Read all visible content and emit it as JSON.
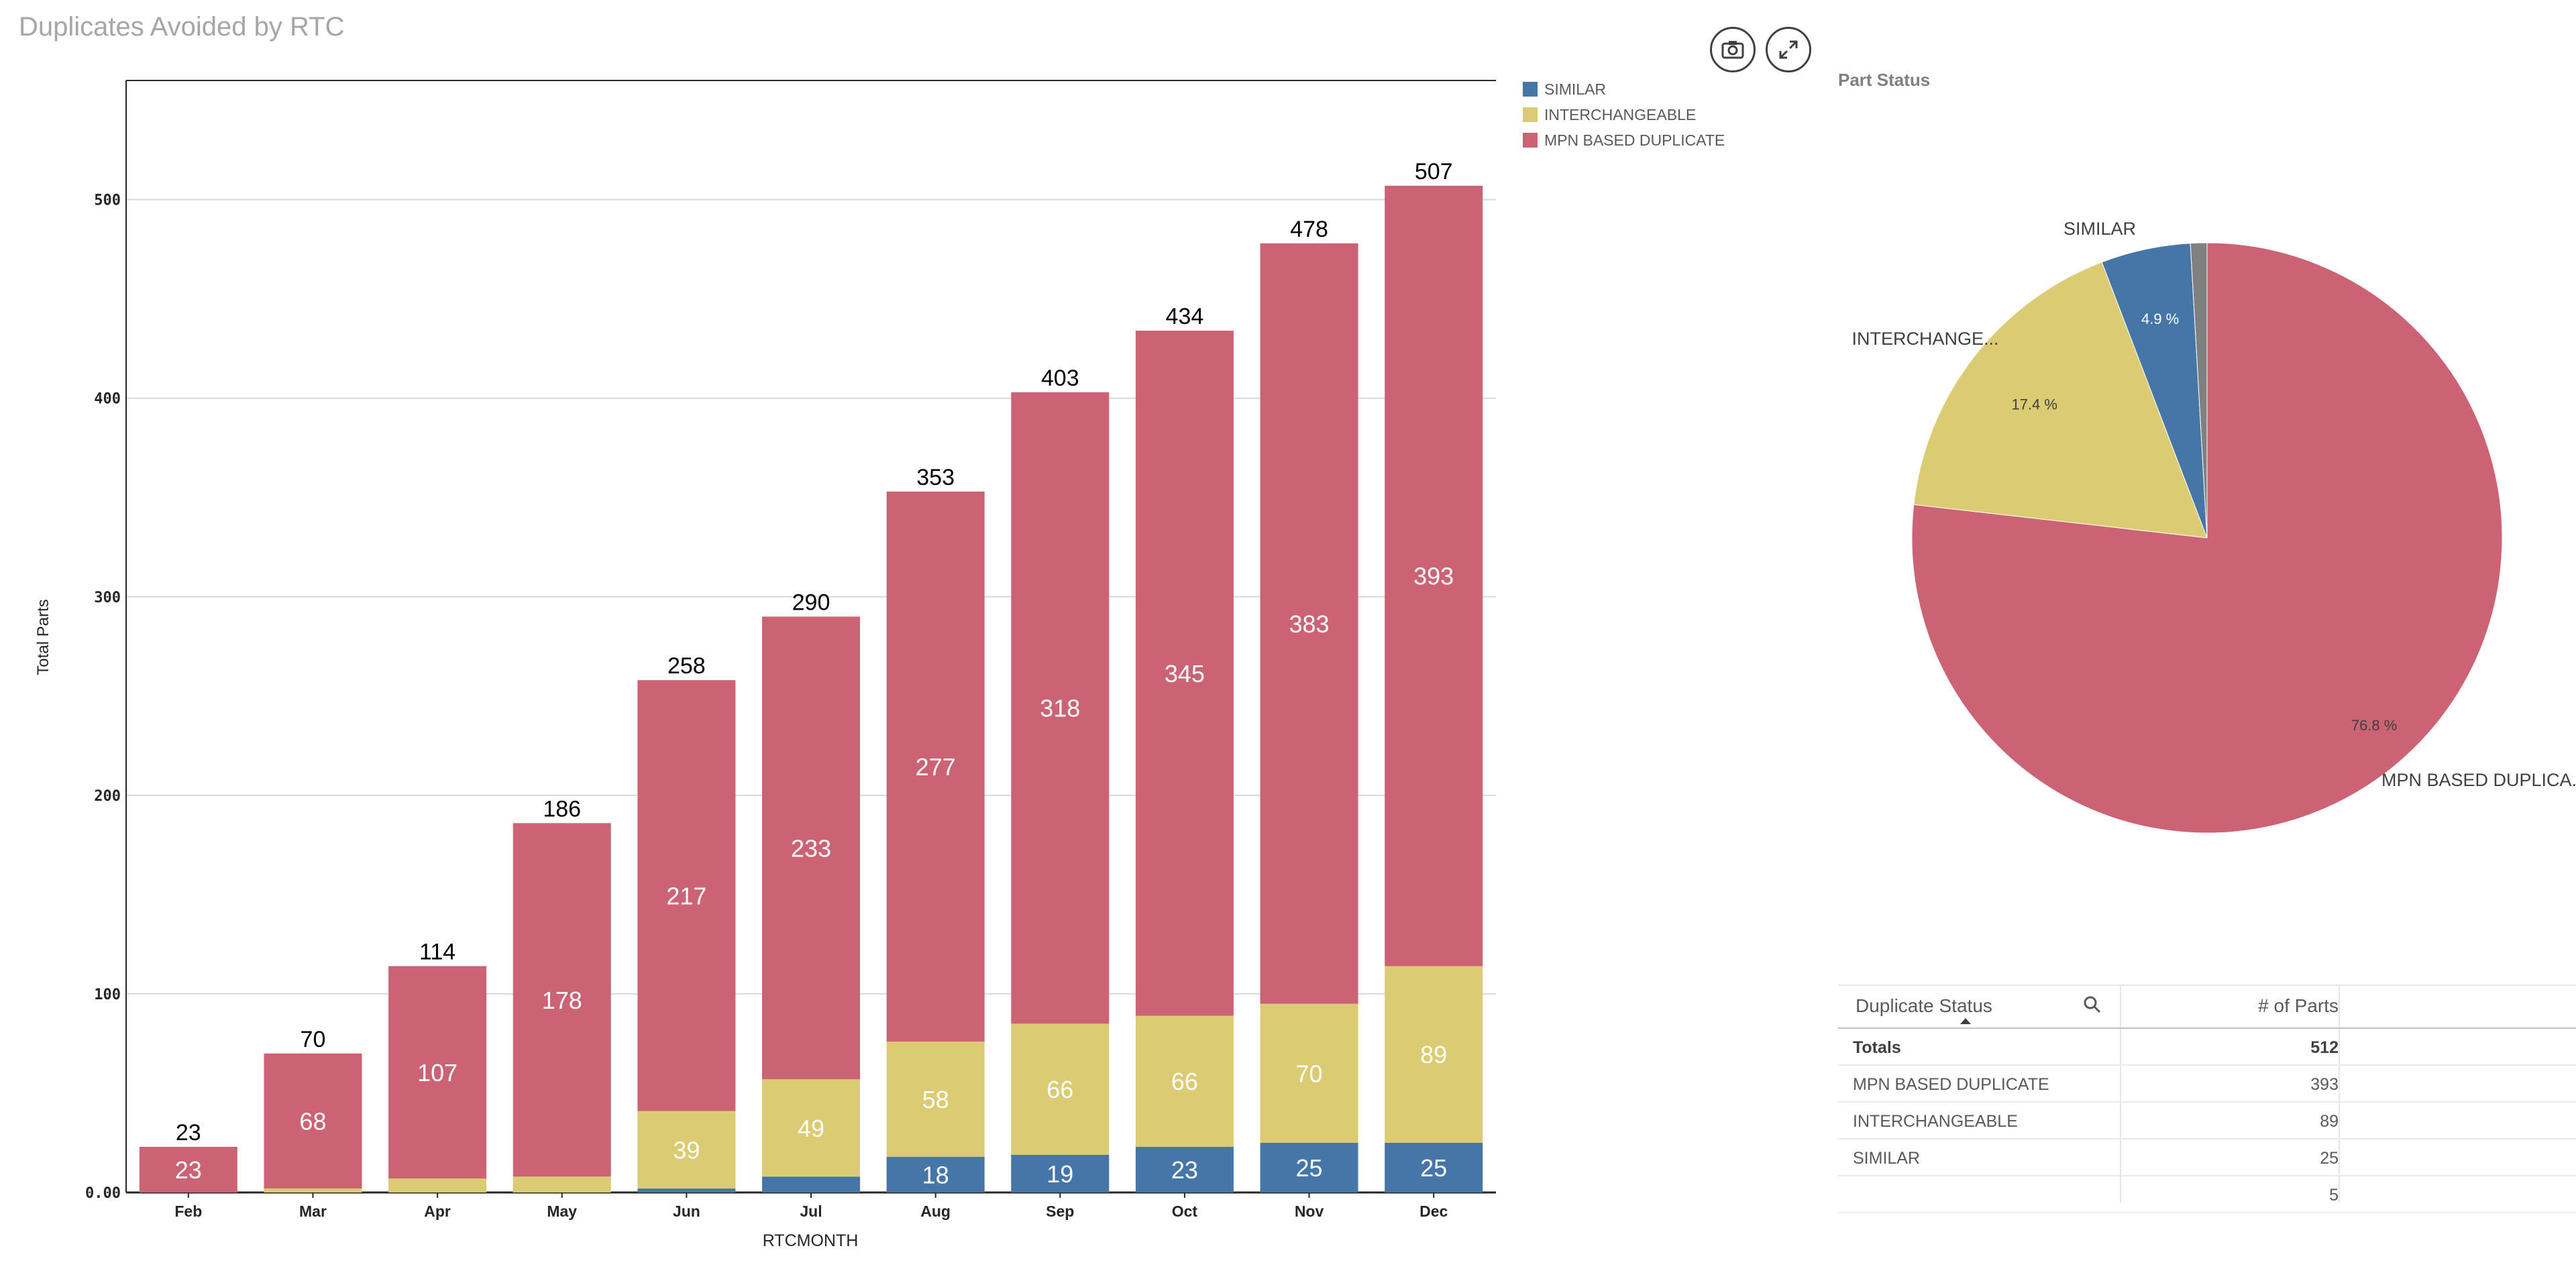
{
  "title": "Duplicates Avoided by RTC",
  "colors": {
    "similar": "#4676a8",
    "interchangeable": "#dbcb72",
    "mpn": "#cc6375",
    "other": "#808080"
  },
  "legend": [
    {
      "label": "SIMILAR",
      "color": "#4676a8"
    },
    {
      "label": "INTERCHANGEABLE",
      "color": "#dbcb72"
    },
    {
      "label": "MPN BASED DUPLICATE",
      "color": "#cc6375"
    }
  ],
  "toolbar": {
    "snapshot_icon": "camera-icon",
    "expand_icon": "expand-icon"
  },
  "chart_data": [
    {
      "type": "bar",
      "stacked": true,
      "xlabel": "RTCMONTH",
      "ylabel": "Total Parts",
      "ylim": [
        0,
        560
      ],
      "yticks": [
        "0.00",
        "100",
        "200",
        "300",
        "400",
        "500"
      ],
      "grid": true,
      "legend_position": "top-right",
      "categories": [
        "Feb",
        "Mar",
        "Apr",
        "May",
        "Jun",
        "Jul",
        "Aug",
        "Sep",
        "Oct",
        "Nov",
        "Dec"
      ],
      "totals": [
        23,
        70,
        114,
        186,
        258,
        290,
        353,
        403,
        434,
        478,
        507
      ],
      "series": [
        {
          "name": "SIMILAR",
          "values": [
            0,
            0,
            0,
            0,
            2,
            8,
            18,
            19,
            23,
            25,
            25
          ],
          "labels": [
            "",
            "",
            "",
            "",
            "",
            "",
            "18",
            "19",
            "23",
            "25",
            "25"
          ]
        },
        {
          "name": "INTERCHANGEABLE",
          "values": [
            0,
            2,
            7,
            8,
            39,
            49,
            58,
            66,
            66,
            70,
            89
          ],
          "labels": [
            "",
            "",
            "",
            "",
            "39",
            "49",
            "58",
            "66",
            "66",
            "70",
            "89"
          ]
        },
        {
          "name": "MPN BASED DUPLICATE",
          "values": [
            23,
            68,
            107,
            178,
            217,
            233,
            277,
            318,
            345,
            383,
            393
          ],
          "labels": [
            "23",
            "68",
            "107",
            "178",
            "217",
            "233",
            "277",
            "318",
            "345",
            "383",
            "393"
          ]
        }
      ]
    },
    {
      "type": "pie",
      "title": "Part Status",
      "slices": [
        {
          "name": "MPN BASED DUPLICA...",
          "value": 76.8,
          "label": "76.8 %",
          "color": "#cc6375"
        },
        {
          "name": "INTERCHANGE...",
          "value": 17.4,
          "label": "17.4 %",
          "color": "#dbcb72"
        },
        {
          "name": "SIMILAR",
          "value": 4.9,
          "label": "4.9 %",
          "color": "#4676a8"
        },
        {
          "name": "",
          "value": 0.9,
          "label": "",
          "color": "#808080"
        }
      ]
    }
  ],
  "table": {
    "headers": {
      "status": "Duplicate Status",
      "parts": "# of Parts"
    },
    "totals": {
      "label": "Totals",
      "value": "512"
    },
    "rows": [
      {
        "status": "MPN BASED DUPLICATE",
        "parts": "393"
      },
      {
        "status": "INTERCHANGEABLE",
        "parts": "89"
      },
      {
        "status": "SIMILAR",
        "parts": "25"
      },
      {
        "status": "",
        "parts": "5"
      }
    ]
  }
}
